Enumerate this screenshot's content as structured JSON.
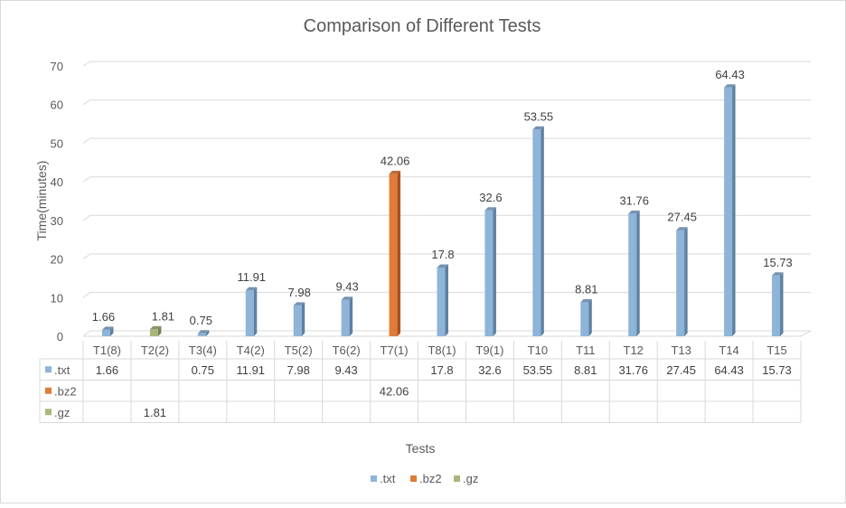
{
  "chart_data": {
    "type": "bar",
    "title": "Comparison of Different Tests",
    "xlabel": "Tests",
    "ylabel": "Time(minutes)",
    "ylim": [
      0,
      70
    ],
    "yticks": [
      0,
      10,
      20,
      30,
      40,
      50,
      60,
      70
    ],
    "grid": true,
    "legend_position": "bottom",
    "data_table": true,
    "categories": [
      "T1(8)",
      "T2(2)",
      "T3(4)",
      "T4(2)",
      "T5(2)",
      "T6(2)",
      "T7(1)",
      "T8(1)",
      "T9(1)",
      "T10",
      "T11",
      "T12",
      "T13",
      "T14",
      "T15"
    ],
    "series": [
      {
        "name": ".txt",
        "color": "#8eb4d8",
        "side_color": "#5e81a3",
        "values": [
          1.66,
          null,
          0.75,
          11.91,
          7.98,
          9.43,
          null,
          17.8,
          32.6,
          53.55,
          8.81,
          31.76,
          27.45,
          64.43,
          15.73
        ]
      },
      {
        "name": ".bz2",
        "color": "#e07b39",
        "side_color": "#a9521f",
        "values": [
          null,
          null,
          null,
          null,
          null,
          null,
          42.06,
          null,
          null,
          null,
          null,
          null,
          null,
          null,
          null
        ]
      },
      {
        "name": ".gz",
        "color": "#a7b77b",
        "side_color": "#75844e",
        "values": [
          null,
          1.81,
          null,
          null,
          null,
          null,
          null,
          null,
          null,
          null,
          null,
          null,
          null,
          null,
          null
        ]
      }
    ]
  }
}
